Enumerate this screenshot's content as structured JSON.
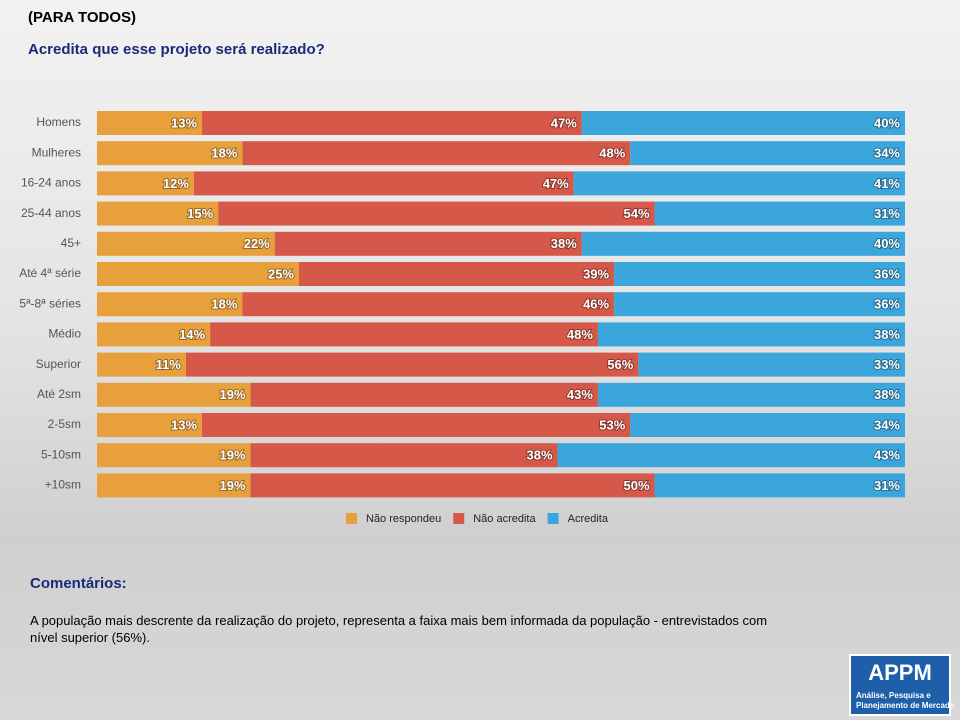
{
  "header": {
    "section": "(PARA TODOS)"
  },
  "chart_data": {
    "type": "stacked-bar-horizontal",
    "title": "Acredita que esse projeto será realizado?",
    "categories": [
      "Homens",
      "Mulheres",
      "16-24 anos",
      "25-44 anos",
      "45+",
      "Até 4ª série",
      "5ª-8ª séries",
      "Médio",
      "Superior",
      "Até 2sm",
      "2-5sm",
      "5-10sm",
      "+10sm"
    ],
    "xlim": [
      0,
      100
    ],
    "series": [
      {
        "name": "Não respondeu",
        "color": "#e8a03c",
        "values": [
          13,
          18,
          12,
          15,
          22,
          25,
          18,
          14,
          11,
          19,
          13,
          19,
          19
        ],
        "value_labels": [
          "13%",
          "18%",
          "12%",
          "15%",
          "22%",
          "25%",
          "18%",
          "14%",
          "11%",
          "19%",
          "13%",
          "19%",
          "19%"
        ]
      },
      {
        "name": "Não acredita",
        "color": "#d65848",
        "values": [
          47,
          48,
          47,
          54,
          38,
          39,
          46,
          48,
          56,
          43,
          53,
          38,
          50
        ],
        "value_labels": [
          "47%",
          "48%",
          "47%",
          "54%",
          "38%",
          "39%",
          "46%",
          "48%",
          "56%",
          "43%",
          "53%",
          "38%",
          "50%"
        ]
      },
      {
        "name": "Acredita",
        "color": "#3aa6dc",
        "values": [
          40,
          34,
          41,
          31,
          40,
          36,
          36,
          38,
          33,
          38,
          34,
          43,
          31
        ],
        "value_labels": [
          "40%",
          "34%",
          "41%",
          "31%",
          "40%",
          "36%",
          "36%",
          "38%",
          "33%",
          "38%",
          "34%",
          "43%",
          "31%"
        ]
      }
    ],
    "legend": "bottom"
  },
  "comments": {
    "title": "Comentários:",
    "text": "A população mais descrente da realização do projeto, representa a faixa mais bem informada da população - entrevistados com nível superior (56%)."
  },
  "logo": {
    "name": "APPM",
    "tagline": [
      "Análise, Pesquisa e",
      "Planejamento de Mercado"
    ]
  }
}
